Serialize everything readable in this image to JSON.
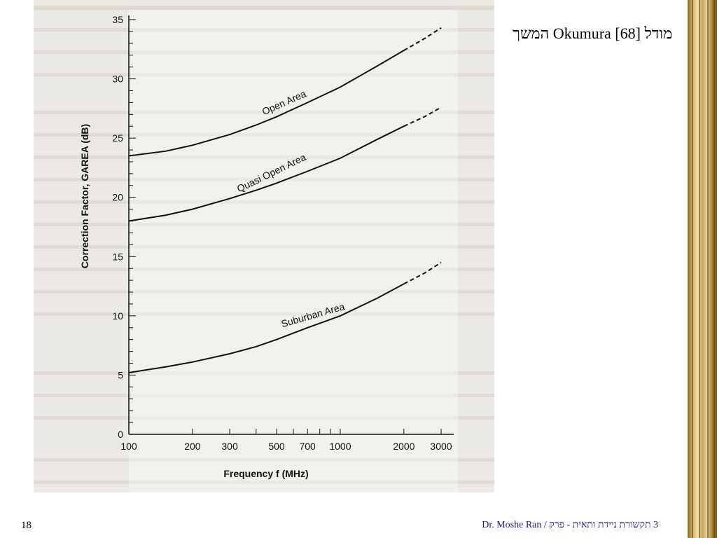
{
  "slide": {
    "title": "מודל Okumura [68] המשך",
    "page_number": "18",
    "footer": "3 תקשורת ניידת ותאית - פרק / Dr. Moshe Ran"
  },
  "colors": {
    "background": "#ffffff",
    "scan_background": "#ebe9e4",
    "ink": "#111111",
    "footer_text": "#1a1a8c",
    "frame_gold": "#d2b46a"
  },
  "chart_data": {
    "type": "line",
    "title": "",
    "xlabel": "Frequency  f  (MHz)",
    "ylabel": "Correction  Factor,  GAREA  (dB)",
    "x_scale": "log",
    "xlim": [
      100,
      3000
    ],
    "ylim": [
      0,
      35
    ],
    "x_ticks": [
      100,
      200,
      300,
      500,
      700,
      1000,
      2000,
      3000
    ],
    "x_tick_labels": [
      "100",
      "200",
      "300",
      "500",
      "700",
      "1000",
      "2000",
      "3000"
    ],
    "y_ticks": [
      0,
      5,
      10,
      15,
      20,
      25,
      30,
      35
    ],
    "y_tick_labels": [
      "0",
      "5",
      "10",
      "15",
      "20",
      "25",
      "30",
      "35"
    ],
    "grid": false,
    "series": [
      {
        "name": "Open Area",
        "x": [
          100,
          150,
          200,
          300,
          400,
          500,
          700,
          1000,
          1500,
          2000,
          2500,
          3000
        ],
        "y": [
          23.5,
          23.9,
          24.4,
          25.3,
          26.1,
          26.8,
          28.0,
          29.3,
          31.1,
          32.4,
          33.4,
          34.3
        ],
        "dashed_from": 2000
      },
      {
        "name": "Quasi Open Area",
        "x": [
          100,
          150,
          200,
          300,
          400,
          500,
          700,
          1000,
          1500,
          2000,
          2500,
          3000
        ],
        "y": [
          18.0,
          18.5,
          19.0,
          19.9,
          20.6,
          21.2,
          22.2,
          23.3,
          24.9,
          26.0,
          26.8,
          27.6
        ],
        "dashed_from": 2000
      },
      {
        "name": "Suburban Area",
        "x": [
          100,
          150,
          200,
          300,
          400,
          500,
          700,
          1000,
          1500,
          2000,
          2500,
          3000
        ],
        "y": [
          5.2,
          5.7,
          6.1,
          6.8,
          7.4,
          8.0,
          9.0,
          10.0,
          11.5,
          12.7,
          13.6,
          14.5
        ],
        "dashed_from": 2000
      }
    ],
    "annotations": [
      "Open Area",
      "Quasi Open Area",
      "Suburban Area"
    ]
  }
}
